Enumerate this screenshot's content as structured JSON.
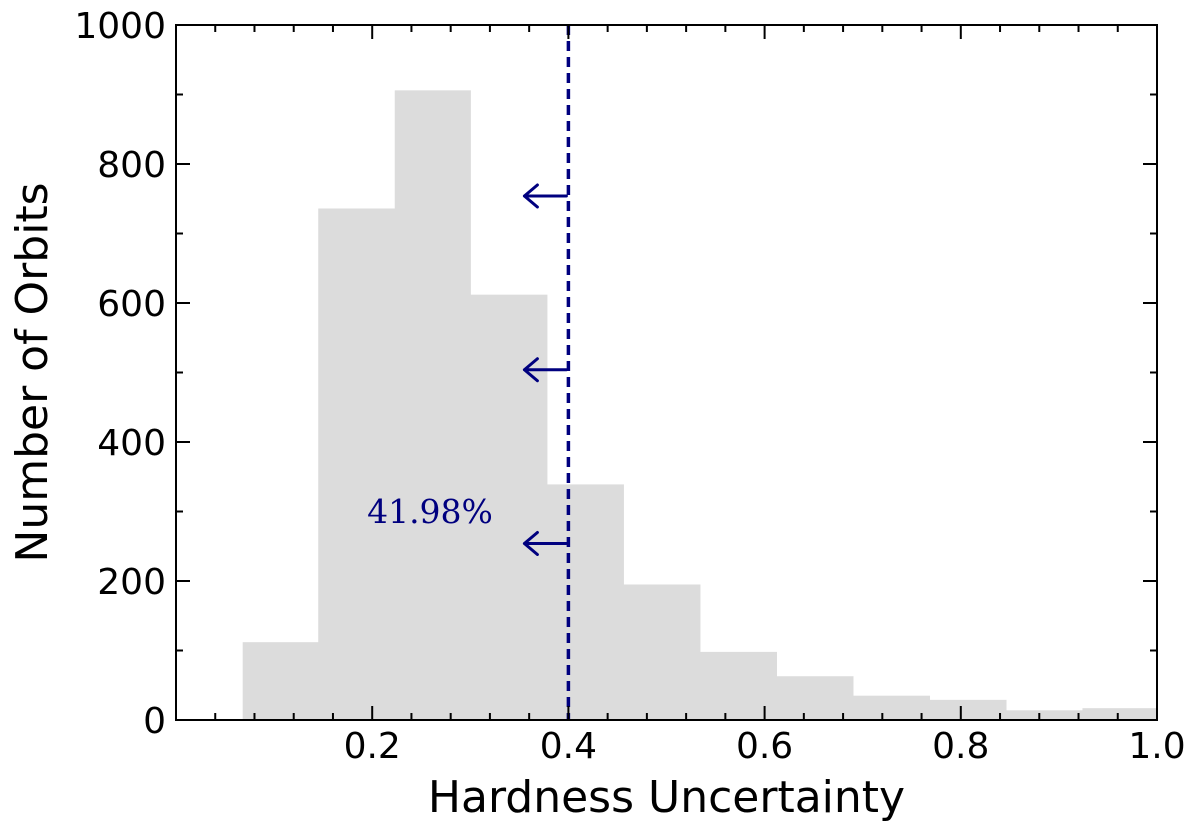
{
  "chart_data": {
    "type": "bar",
    "xlabel": "Hardness Uncertainty",
    "ylabel": "Number of Orbits",
    "xlim": [
      0.0,
      1.0
    ],
    "ylim": [
      0,
      1000
    ],
    "xticks": [
      "0.2",
      "0.4",
      "0.6",
      "0.8",
      "1.0"
    ],
    "xtick_values": [
      0.2,
      0.4,
      0.6,
      0.8,
      1.0
    ],
    "yticks": [
      "0",
      "200",
      "400",
      "600",
      "800",
      "1000"
    ],
    "ytick_values": [
      0,
      200,
      400,
      600,
      800,
      1000
    ],
    "bin_edges": [
      0.068,
      0.145,
      0.223,
      0.3,
      0.378,
      0.456,
      0.534,
      0.612,
      0.69,
      0.768,
      0.846,
      0.924,
      1.0
    ],
    "values": [
      112,
      736,
      906,
      612,
      339,
      195,
      98,
      63,
      35,
      29,
      14,
      17
    ],
    "grid": false,
    "threshold": {
      "x": 0.4,
      "style": "dashed",
      "arrow_y": [
        754,
        504,
        254
      ],
      "label": "41.98%"
    },
    "colors": {
      "bars": "#dcdcdc",
      "threshold": "#00007f",
      "axes": "#000000"
    }
  }
}
